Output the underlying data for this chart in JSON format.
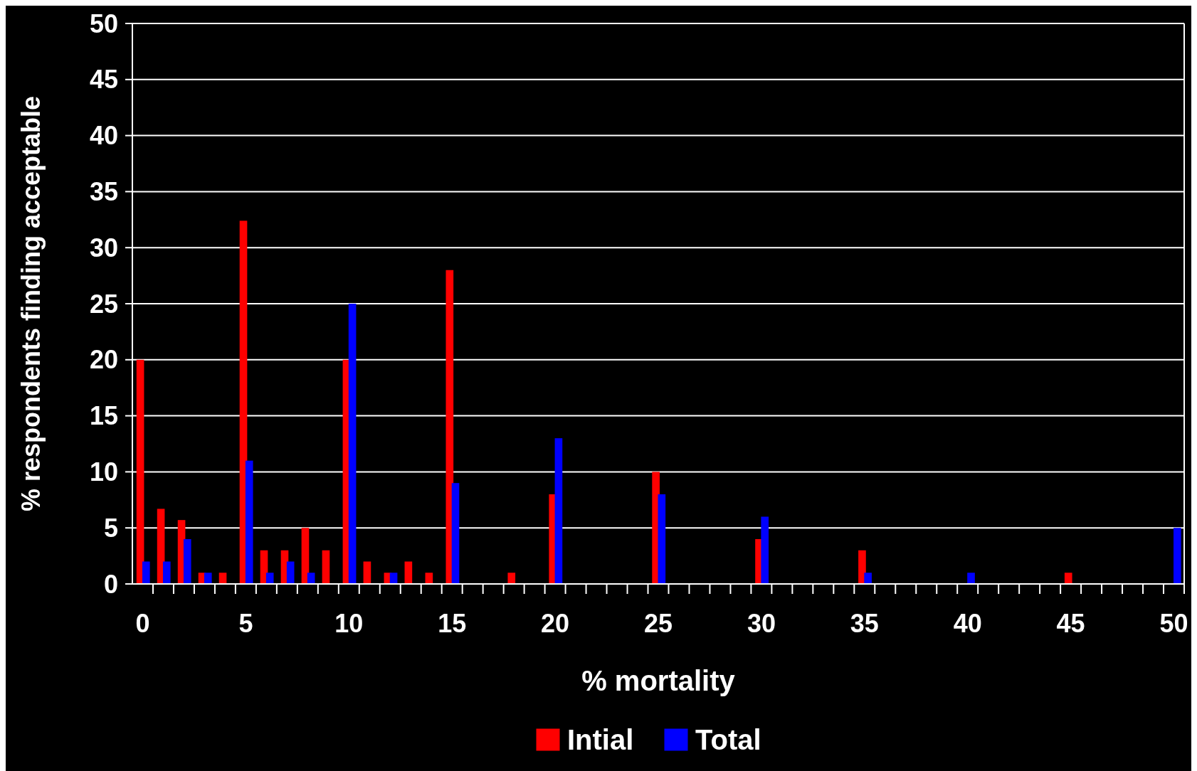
{
  "chart_data": {
    "type": "bar",
    "xlabel": "% mortality",
    "ylabel": "% respondents finding acceptable",
    "categories": [
      "0",
      null,
      null,
      null,
      null,
      "5",
      null,
      null,
      null,
      null,
      "10",
      null,
      null,
      null,
      null,
      "15",
      null,
      null,
      null,
      null,
      "20",
      null,
      null,
      null,
      null,
      "25",
      null,
      null,
      null,
      null,
      "30",
      null,
      null,
      null,
      null,
      "35",
      null,
      null,
      null,
      null,
      "40",
      null,
      null,
      null,
      null,
      "45",
      null,
      null,
      null,
      null,
      "50"
    ],
    "series": [
      {
        "name": "Intial",
        "color": "#ff0000",
        "values": [
          20,
          6.7,
          5.7,
          1,
          1,
          32.4,
          3,
          3,
          5,
          3,
          20,
          2,
          1,
          2,
          1,
          28,
          null,
          null,
          1,
          null,
          8,
          null,
          null,
          null,
          null,
          10,
          null,
          null,
          null,
          null,
          4,
          null,
          null,
          null,
          null,
          3,
          null,
          null,
          null,
          null,
          null,
          null,
          null,
          null,
          null,
          1,
          null,
          null,
          null,
          null,
          null
        ]
      },
      {
        "name": "Total",
        "color": "#0000ff",
        "values": [
          2,
          2,
          4,
          1,
          null,
          11,
          1,
          2,
          1,
          null,
          25,
          null,
          1,
          null,
          null,
          9,
          null,
          null,
          null,
          null,
          13,
          null,
          null,
          null,
          null,
          8,
          null,
          null,
          null,
          null,
          6,
          null,
          null,
          null,
          null,
          1,
          null,
          null,
          null,
          null,
          1,
          null,
          null,
          null,
          null,
          null,
          null,
          null,
          null,
          null,
          5
        ]
      }
    ],
    "ylim": [
      0,
      50
    ],
    "yticks": [
      0,
      5,
      10,
      15,
      20,
      25,
      30,
      35,
      40,
      45,
      50
    ],
    "grid": "y",
    "legend": "bottom"
  }
}
